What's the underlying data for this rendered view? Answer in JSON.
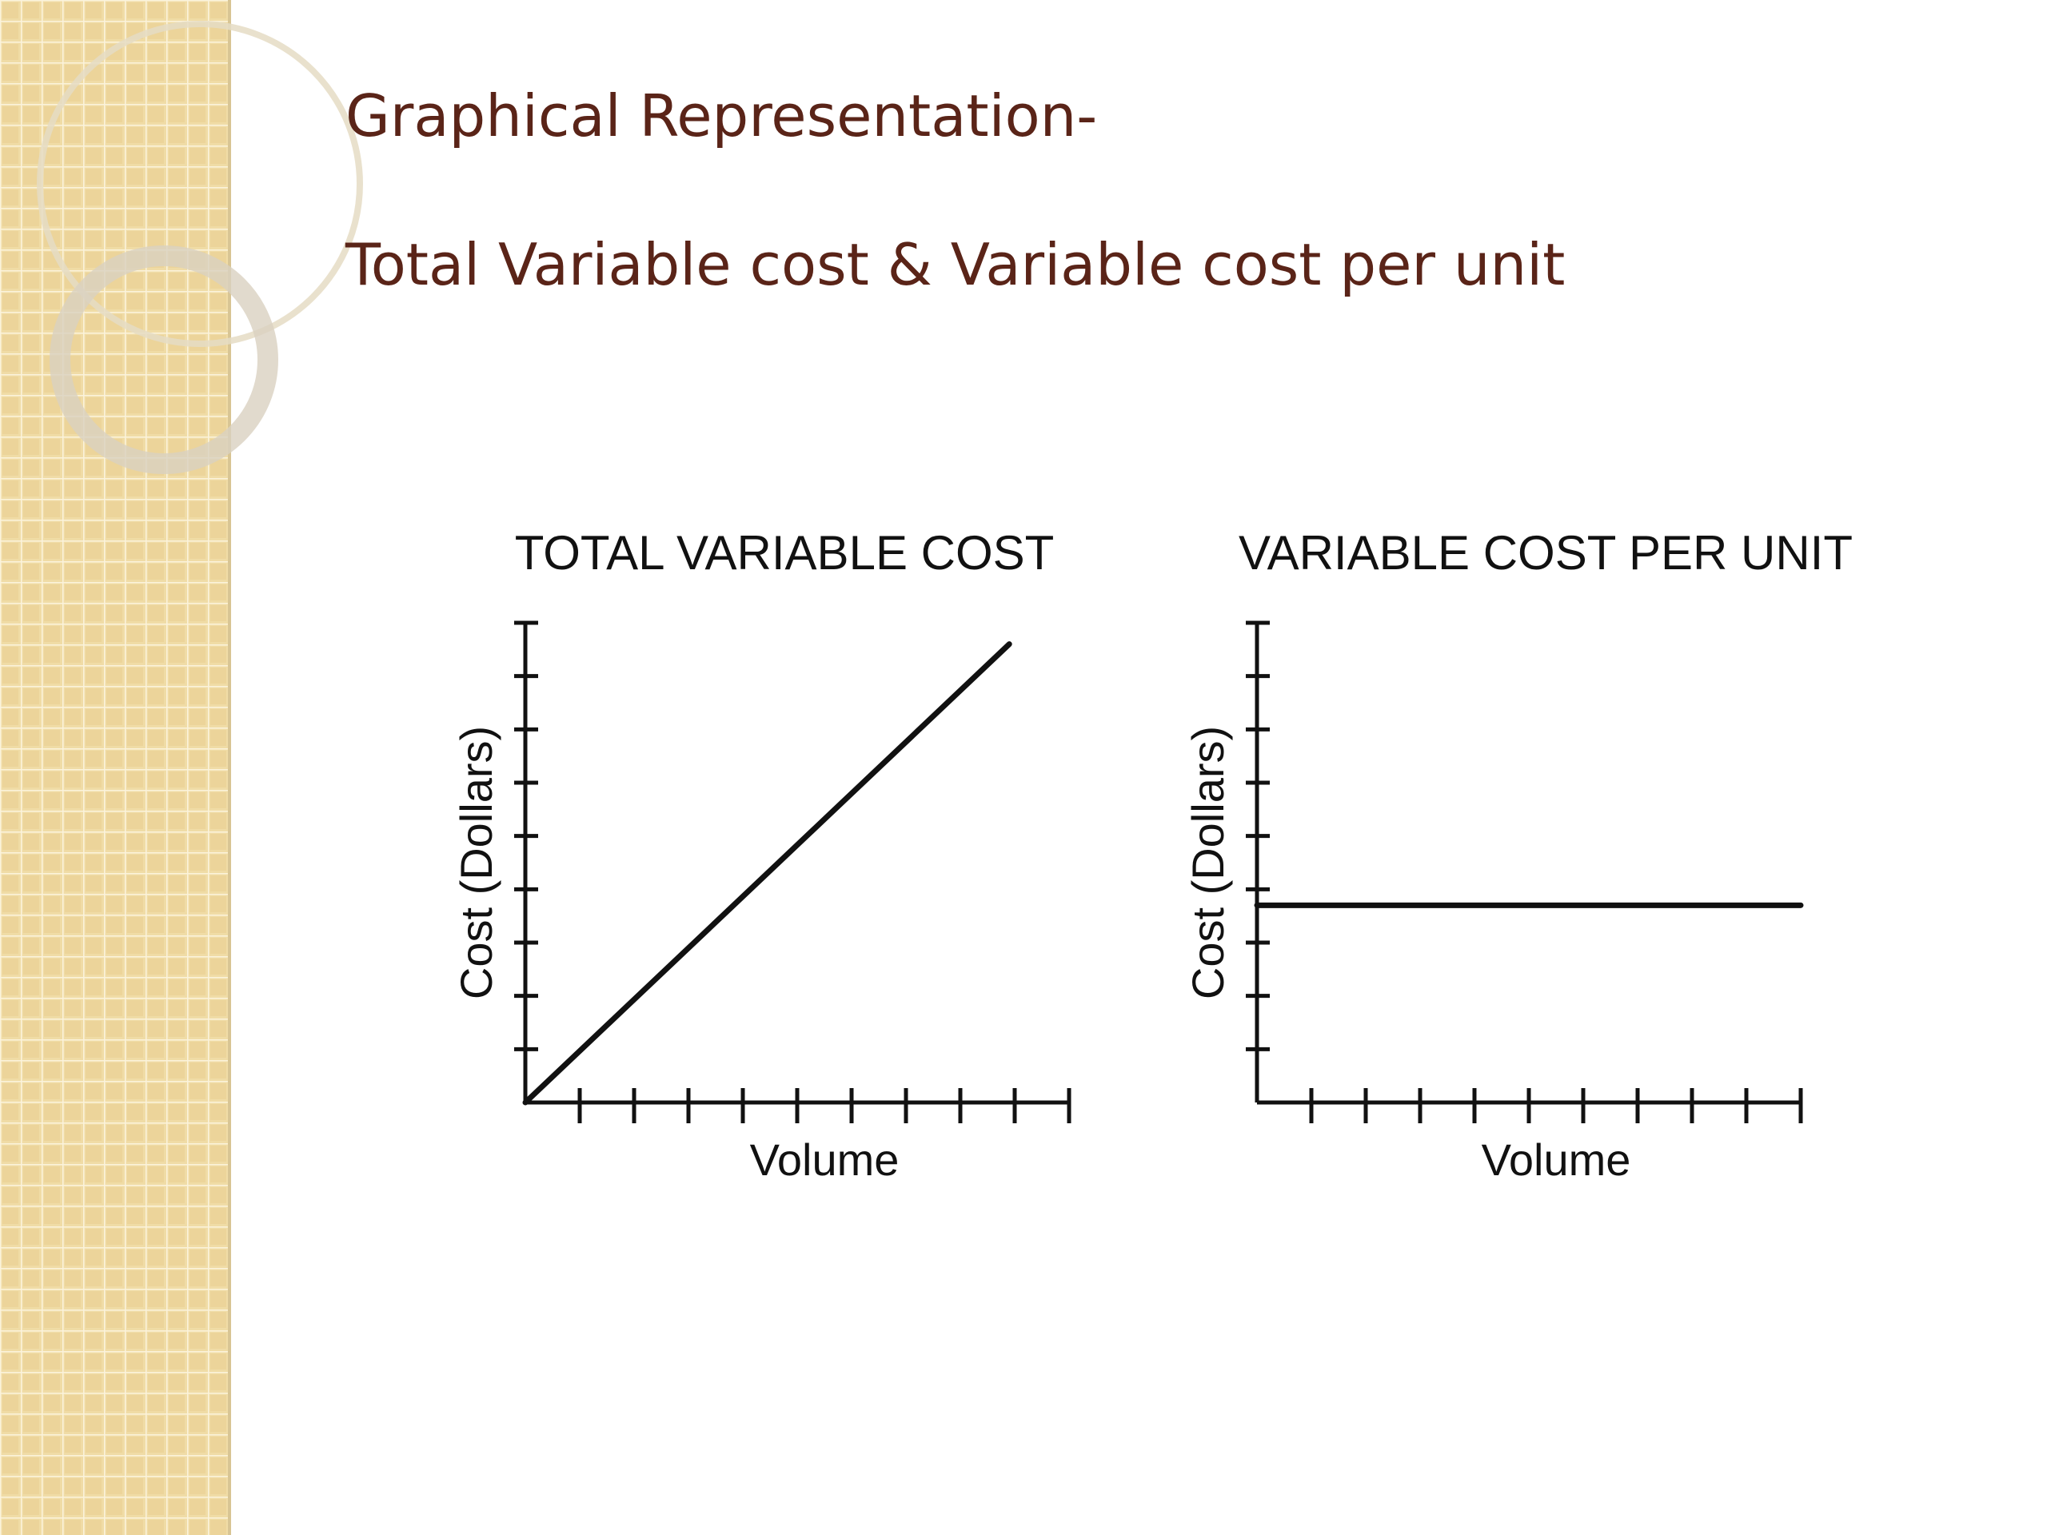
{
  "slide": {
    "title": "Graphical Representation-",
    "subtitle": "Total Variable cost & Variable cost per unit"
  },
  "chart_data": [
    {
      "type": "line",
      "title": "TOTAL VARIABLE COST",
      "xlabel": "Volume",
      "ylabel": "Cost (Dollars)",
      "x": [
        0,
        8.9
      ],
      "values": [
        0,
        8.6
      ],
      "color": "#111111",
      "xlim": [
        0,
        10
      ],
      "ylim": [
        0,
        9
      ],
      "xticks": [
        1,
        2,
        3,
        4,
        5,
        6,
        7,
        8,
        9,
        10
      ],
      "yticks": [
        1,
        2,
        3,
        4,
        5,
        6,
        7,
        8,
        9
      ]
    },
    {
      "type": "line",
      "title": "VARIABLE COST PER UNIT",
      "xlabel": "Volume",
      "ylabel": "Cost (Dollars)",
      "x": [
        0,
        10
      ],
      "values": [
        3.7,
        3.7
      ],
      "color": "#111111",
      "xlim": [
        0,
        10
      ],
      "ylim": [
        0,
        9
      ],
      "xticks": [
        1,
        2,
        3,
        4,
        5,
        6,
        7,
        8,
        9,
        10
      ],
      "yticks": [
        1,
        2,
        3,
        4,
        5,
        6,
        7,
        8,
        9
      ]
    }
  ]
}
